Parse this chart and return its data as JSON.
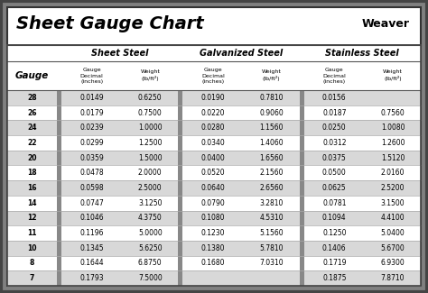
{
  "title": "Sheet Gauge Chart",
  "bg_outer": "#808080",
  "bg_white": "#ffffff",
  "bg_row_gray": "#d8d8d8",
  "bg_row_white": "#ffffff",
  "divider_color": "#888888",
  "border_dark": "#404040",
  "gauges": [
    28,
    26,
    24,
    22,
    20,
    18,
    16,
    14,
    12,
    11,
    10,
    8,
    7
  ],
  "sheet_steel_decimal": [
    "0.0149",
    "0.0179",
    "0.0239",
    "0.0299",
    "0.0359",
    "0.0478",
    "0.0598",
    "0.0747",
    "0.1046",
    "0.1196",
    "0.1345",
    "0.1644",
    "0.1793"
  ],
  "sheet_steel_weight": [
    "0.6250",
    "0.7500",
    "1.0000",
    "1.2500",
    "1.5000",
    "2.0000",
    "2.5000",
    "3.1250",
    "4.3750",
    "5.0000",
    "5.6250",
    "6.8750",
    "7.5000"
  ],
  "galvanized_decimal": [
    "0.0190",
    "0.0220",
    "0.0280",
    "0.0340",
    "0.0400",
    "0.0520",
    "0.0640",
    "0.0790",
    "0.1080",
    "0.1230",
    "0.1380",
    "0.1680",
    ""
  ],
  "galvanized_weight": [
    "0.7810",
    "0.9060",
    "1.1560",
    "1.4060",
    "1.6560",
    "2.1560",
    "2.6560",
    "3.2810",
    "4.5310",
    "5.1560",
    "5.7810",
    "7.0310",
    ""
  ],
  "stainless_decimal": [
    "0.0156",
    "0.0187",
    "0.0250",
    "0.0312",
    "0.0375",
    "0.0500",
    "0.0625",
    "0.0781",
    "0.1094",
    "0.1250",
    "0.1406",
    "0.1719",
    "0.1875"
  ],
  "stainless_weight": [
    "",
    "0.7560",
    "1.0080",
    "1.2600",
    "1.5120",
    "2.0160",
    "2.5200",
    "3.1500",
    "4.4100",
    "5.0400",
    "5.6700",
    "6.9300",
    "7.8710"
  ]
}
